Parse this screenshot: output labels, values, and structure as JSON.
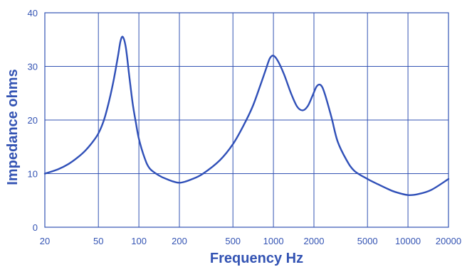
{
  "chart_data": {
    "type": "line",
    "title": "",
    "xlabel": "Frequency Hz",
    "ylabel": "Impedance ohms",
    "x_scale": "log",
    "xlim": [
      20,
      20000
    ],
    "ylim": [
      0,
      40
    ],
    "x_ticks": [
      20,
      50,
      100,
      200,
      500,
      1000,
      2000,
      5000,
      10000,
      20000
    ],
    "x_tick_labels": [
      "20",
      "50",
      "100",
      "200",
      "500",
      "1000",
      "2000",
      "5000",
      "10000",
      "20000"
    ],
    "y_ticks": [
      0,
      10,
      20,
      30,
      40
    ],
    "y_tick_labels": [
      "0",
      "10",
      "20",
      "30",
      "40"
    ],
    "grid": true,
    "colors": {
      "line": "#3050b8",
      "grid": "#3353b3",
      "text": "#3353b3"
    },
    "series": [
      {
        "x": [
          20,
          25,
          30,
          35,
          40,
          45,
          50,
          55,
          60,
          65,
          70,
          73,
          76,
          80,
          85,
          90,
          95,
          100,
          110,
          120,
          140,
          160,
          200,
          250,
          300,
          400,
          500,
          600,
          700,
          800,
          880,
          940,
          1000,
          1080,
          1200,
          1350,
          1500,
          1650,
          1800,
          1950,
          2100,
          2250,
          2400,
          2700,
          3000,
          3500,
          4000,
          5000,
          6000,
          7000,
          8000,
          10000,
          12000,
          15000,
          20000
        ],
        "y": [
          10.0,
          10.8,
          11.8,
          13.0,
          14.3,
          15.8,
          17.5,
          20.0,
          23.5,
          27.5,
          32.0,
          34.7,
          35.5,
          33.5,
          28.0,
          23.0,
          19.5,
          16.5,
          13.0,
          11.0,
          9.7,
          9.0,
          8.3,
          9.0,
          10.0,
          12.5,
          15.5,
          19.0,
          22.5,
          26.5,
          29.5,
          31.5,
          32.0,
          31.0,
          28.5,
          25.0,
          22.5,
          21.8,
          22.6,
          24.5,
          26.3,
          26.5,
          25.0,
          20.5,
          16.0,
          12.5,
          10.5,
          9.0,
          8.0,
          7.2,
          6.6,
          6.0,
          6.2,
          7.0,
          9.0
        ]
      }
    ]
  }
}
